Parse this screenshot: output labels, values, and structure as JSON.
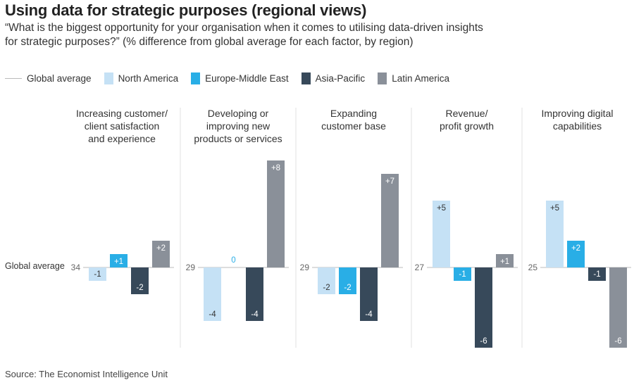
{
  "header": {
    "title": "Using data for strategic purposes (regional views)",
    "subtitle": "“What is the biggest opportunity for your organisation when it comes to utilising data-driven insights for strategic purposes?” (% difference from global average for each factor, by region)"
  },
  "legend": [
    {
      "label": "Global average",
      "kind": "line",
      "color": "#bbbbbb"
    },
    {
      "label": "North America",
      "kind": "box",
      "color": "#c5e1f5"
    },
    {
      "label": "Europe-Middle East",
      "kind": "box",
      "color": "#29aee6"
    },
    {
      "label": "Asia-Pacific",
      "kind": "box",
      "color": "#37495a"
    },
    {
      "label": "Latin America",
      "kind": "box",
      "color": "#8a9099"
    }
  ],
  "source": "Source: The Economist Intelligence Unit",
  "chart_data": {
    "type": "bar",
    "title": "Using data for strategic purposes (regional views)",
    "ylabel": "% difference from global average",
    "baseline_label": "Global average",
    "series_names": [
      "North America",
      "Europe-Middle East",
      "Asia-Pacific",
      "Latin America"
    ],
    "series_colors": [
      "#c5e1f5",
      "#29aee6",
      "#37495a",
      "#8a9099"
    ],
    "label_colors": [
      "#333333",
      "#ffffff",
      "#ffffff",
      "#ffffff"
    ],
    "ylim": [
      -6,
      8
    ],
    "categories": [
      {
        "title_lines": [
          "Increasing customer/",
          "client satisfaction",
          "and experience"
        ],
        "global_average": "34",
        "values": [
          -1,
          1,
          -2,
          2
        ],
        "labels": [
          "-1",
          "+1",
          "-2",
          "+2"
        ]
      },
      {
        "title_lines": [
          "Developing or",
          "improving new",
          "products or services"
        ],
        "global_average": "29",
        "values": [
          -4,
          0,
          -4,
          8
        ],
        "labels": [
          "-4",
          "0",
          "-4",
          "+8"
        ]
      },
      {
        "title_lines": [
          "Expanding",
          "customer base"
        ],
        "global_average": "29",
        "values": [
          -2,
          -2,
          -4,
          7
        ],
        "labels": [
          "-2",
          "-2",
          "-4",
          "+7"
        ]
      },
      {
        "title_lines": [
          "Revenue/",
          "profit growth"
        ],
        "global_average": "27",
        "values": [
          5,
          -1,
          -6,
          1
        ],
        "labels": [
          "+5",
          "-1",
          "-6",
          "+1"
        ]
      },
      {
        "title_lines": [
          "Improving digital",
          "capabilities"
        ],
        "global_average": "25",
        "values": [
          5,
          2,
          -1,
          -6
        ],
        "labels": [
          "+5",
          "+2",
          "-1",
          "-6"
        ]
      }
    ]
  }
}
